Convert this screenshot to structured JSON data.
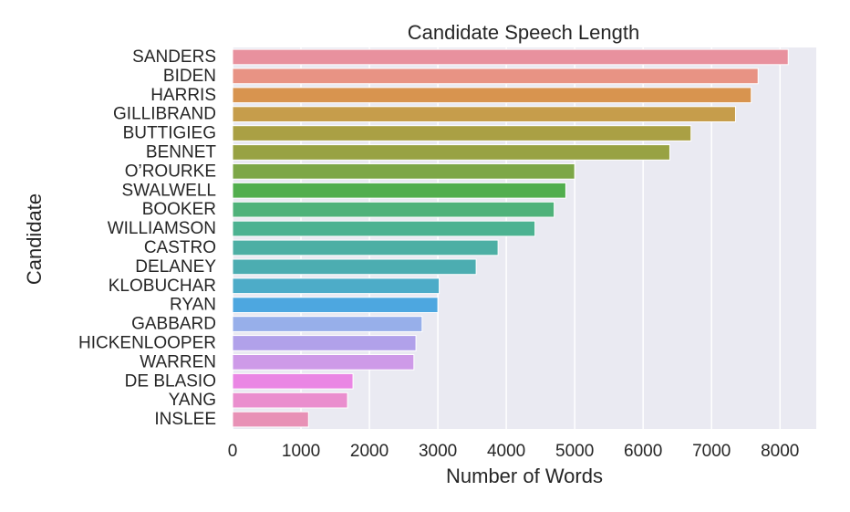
{
  "chart_data": {
    "type": "bar",
    "orientation": "horizontal",
    "title": "Candidate Speech Length",
    "xlabel": "Number of Words",
    "ylabel": "Candidate",
    "xlim": [
      0,
      8530
    ],
    "xticks": [
      0,
      1000,
      2000,
      3000,
      4000,
      5000,
      6000,
      7000,
      8000
    ],
    "grid": true,
    "background": "#eaeaf2",
    "categories": [
      "SANDERS",
      "BIDEN",
      "HARRIS",
      "GILLIBRAND",
      "BUTTIGIEG",
      "BENNET",
      "O’ROURKE",
      "SWALWELL",
      "BOOKER",
      "WILLIAMSON",
      "CASTRO",
      "DELANEY",
      "KLOBUCHAR",
      "RYAN",
      "GABBARD",
      "HICKENLOOPER",
      "WARREN",
      "DE BLASIO",
      "YANG",
      "INSLEE"
    ],
    "values": [
      8120,
      7680,
      7580,
      7350,
      6700,
      6390,
      5000,
      4870,
      4700,
      4420,
      3880,
      3560,
      3020,
      3000,
      2770,
      2680,
      2650,
      1760,
      1680,
      1110
    ],
    "colors": [
      "#e8919e",
      "#e89384",
      "#d8944f",
      "#c69d4b",
      "#aaa044",
      "#98a243",
      "#7da747",
      "#52ae4e",
      "#4fb27a",
      "#4cb291",
      "#4dafa4",
      "#4cadb1",
      "#4dacc8",
      "#4da7e0",
      "#97afea",
      "#b1a1ea",
      "#ce9ae8",
      "#ea86e4",
      "#ea8ece",
      "#e891b6"
    ]
  }
}
